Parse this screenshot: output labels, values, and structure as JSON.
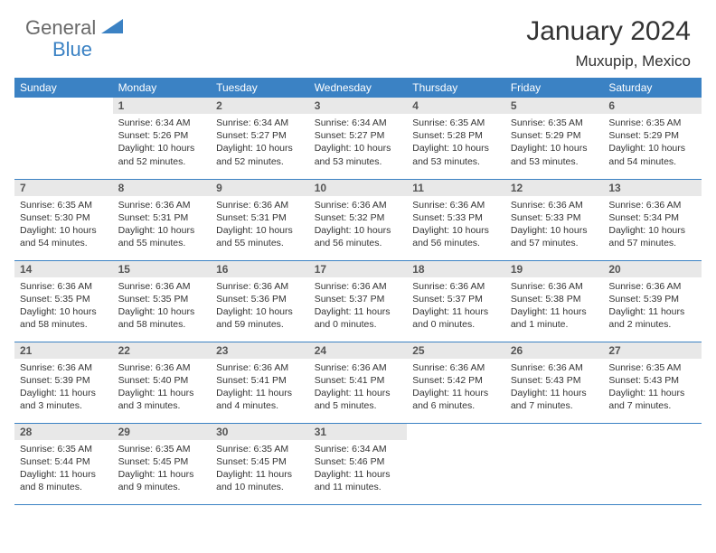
{
  "logo": {
    "text1": "General",
    "text2": "Blue"
  },
  "title": "January 2024",
  "location": "Muxupip, Mexico",
  "colors": {
    "header_bg": "#3b82c4",
    "daynum_bg": "#e8e8e8",
    "text": "#333333",
    "logo_gray": "#6a6a6a",
    "logo_blue": "#3b82c4",
    "page_bg": "#ffffff",
    "border": "#3b82c4"
  },
  "weekdays": [
    "Sunday",
    "Monday",
    "Tuesday",
    "Wednesday",
    "Thursday",
    "Friday",
    "Saturday"
  ],
  "start_offset": 1,
  "days": [
    {
      "n": 1,
      "sunrise": "6:34 AM",
      "sunset": "5:26 PM",
      "daylight": "10 hours and 52 minutes."
    },
    {
      "n": 2,
      "sunrise": "6:34 AM",
      "sunset": "5:27 PM",
      "daylight": "10 hours and 52 minutes."
    },
    {
      "n": 3,
      "sunrise": "6:34 AM",
      "sunset": "5:27 PM",
      "daylight": "10 hours and 53 minutes."
    },
    {
      "n": 4,
      "sunrise": "6:35 AM",
      "sunset": "5:28 PM",
      "daylight": "10 hours and 53 minutes."
    },
    {
      "n": 5,
      "sunrise": "6:35 AM",
      "sunset": "5:29 PM",
      "daylight": "10 hours and 53 minutes."
    },
    {
      "n": 6,
      "sunrise": "6:35 AM",
      "sunset": "5:29 PM",
      "daylight": "10 hours and 54 minutes."
    },
    {
      "n": 7,
      "sunrise": "6:35 AM",
      "sunset": "5:30 PM",
      "daylight": "10 hours and 54 minutes."
    },
    {
      "n": 8,
      "sunrise": "6:36 AM",
      "sunset": "5:31 PM",
      "daylight": "10 hours and 55 minutes."
    },
    {
      "n": 9,
      "sunrise": "6:36 AM",
      "sunset": "5:31 PM",
      "daylight": "10 hours and 55 minutes."
    },
    {
      "n": 10,
      "sunrise": "6:36 AM",
      "sunset": "5:32 PM",
      "daylight": "10 hours and 56 minutes."
    },
    {
      "n": 11,
      "sunrise": "6:36 AM",
      "sunset": "5:33 PM",
      "daylight": "10 hours and 56 minutes."
    },
    {
      "n": 12,
      "sunrise": "6:36 AM",
      "sunset": "5:33 PM",
      "daylight": "10 hours and 57 minutes."
    },
    {
      "n": 13,
      "sunrise": "6:36 AM",
      "sunset": "5:34 PM",
      "daylight": "10 hours and 57 minutes."
    },
    {
      "n": 14,
      "sunrise": "6:36 AM",
      "sunset": "5:35 PM",
      "daylight": "10 hours and 58 minutes."
    },
    {
      "n": 15,
      "sunrise": "6:36 AM",
      "sunset": "5:35 PM",
      "daylight": "10 hours and 58 minutes."
    },
    {
      "n": 16,
      "sunrise": "6:36 AM",
      "sunset": "5:36 PM",
      "daylight": "10 hours and 59 minutes."
    },
    {
      "n": 17,
      "sunrise": "6:36 AM",
      "sunset": "5:37 PM",
      "daylight": "11 hours and 0 minutes."
    },
    {
      "n": 18,
      "sunrise": "6:36 AM",
      "sunset": "5:37 PM",
      "daylight": "11 hours and 0 minutes."
    },
    {
      "n": 19,
      "sunrise": "6:36 AM",
      "sunset": "5:38 PM",
      "daylight": "11 hours and 1 minute."
    },
    {
      "n": 20,
      "sunrise": "6:36 AM",
      "sunset": "5:39 PM",
      "daylight": "11 hours and 2 minutes."
    },
    {
      "n": 21,
      "sunrise": "6:36 AM",
      "sunset": "5:39 PM",
      "daylight": "11 hours and 3 minutes."
    },
    {
      "n": 22,
      "sunrise": "6:36 AM",
      "sunset": "5:40 PM",
      "daylight": "11 hours and 3 minutes."
    },
    {
      "n": 23,
      "sunrise": "6:36 AM",
      "sunset": "5:41 PM",
      "daylight": "11 hours and 4 minutes."
    },
    {
      "n": 24,
      "sunrise": "6:36 AM",
      "sunset": "5:41 PM",
      "daylight": "11 hours and 5 minutes."
    },
    {
      "n": 25,
      "sunrise": "6:36 AM",
      "sunset": "5:42 PM",
      "daylight": "11 hours and 6 minutes."
    },
    {
      "n": 26,
      "sunrise": "6:36 AM",
      "sunset": "5:43 PM",
      "daylight": "11 hours and 7 minutes."
    },
    {
      "n": 27,
      "sunrise": "6:35 AM",
      "sunset": "5:43 PM",
      "daylight": "11 hours and 7 minutes."
    },
    {
      "n": 28,
      "sunrise": "6:35 AM",
      "sunset": "5:44 PM",
      "daylight": "11 hours and 8 minutes."
    },
    {
      "n": 29,
      "sunrise": "6:35 AM",
      "sunset": "5:45 PM",
      "daylight": "11 hours and 9 minutes."
    },
    {
      "n": 30,
      "sunrise": "6:35 AM",
      "sunset": "5:45 PM",
      "daylight": "11 hours and 10 minutes."
    },
    {
      "n": 31,
      "sunrise": "6:34 AM",
      "sunset": "5:46 PM",
      "daylight": "11 hours and 11 minutes."
    }
  ],
  "labels": {
    "sunrise": "Sunrise:",
    "sunset": "Sunset:",
    "daylight": "Daylight:"
  }
}
